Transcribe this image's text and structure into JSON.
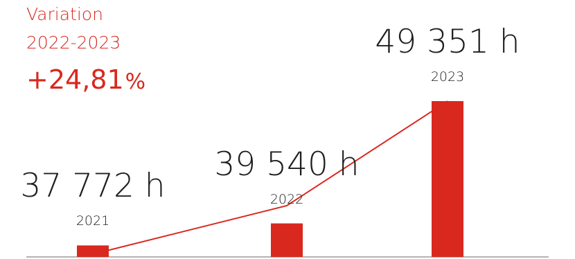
{
  "variation": {
    "label": "Variation",
    "period": "2022-2023",
    "value": "+24,81",
    "unit": "%"
  },
  "colors": {
    "accent": "#d9281e",
    "text": "#1f1f1f",
    "baseline": "#9a9a9a"
  },
  "chart_data": {
    "type": "bar",
    "categories": [
      "2021",
      "2022",
      "2023"
    ],
    "values": [
      37772,
      39540,
      49351
    ],
    "value_labels": [
      "37 772 h",
      "39 540 h",
      "49 351 h"
    ],
    "unit": "h",
    "overlay_line": true,
    "grid": false,
    "legend": "none"
  }
}
